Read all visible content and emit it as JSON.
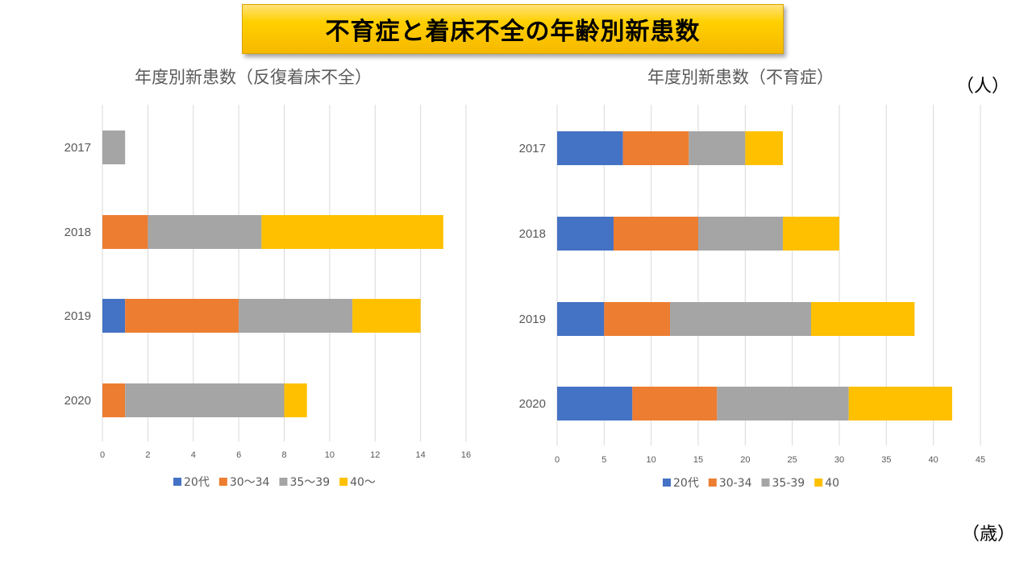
{
  "header": {
    "title": "不育症と着床不全の年齢別新患数"
  },
  "units": {
    "count": "（人）",
    "age": "（歳）"
  },
  "colors": {
    "s1": "#4472c4",
    "s2": "#ed7d31",
    "s3": "#a5a5a5",
    "s4": "#ffc000",
    "grid": "#d9d9d9"
  },
  "chart_data": [
    {
      "type": "bar",
      "orientation": "horizontal",
      "stacked": true,
      "title": "年度別新患数（反復着床不全）",
      "categories": [
        "2017",
        "2018",
        "2019",
        "2020"
      ],
      "series": [
        {
          "name": "20代",
          "values": [
            0,
            0,
            1,
            0
          ]
        },
        {
          "name": "30〜34",
          "values": [
            0,
            2,
            5,
            1
          ]
        },
        {
          "name": "35〜39",
          "values": [
            1,
            5,
            5,
            7
          ]
        },
        {
          "name": "40〜",
          "values": [
            0,
            8,
            3,
            1
          ]
        }
      ],
      "xlim": [
        0,
        16
      ],
      "xticks": [
        "0",
        "2",
        "4",
        "6",
        "8",
        "10",
        "12",
        "14",
        "16"
      ],
      "grid": true,
      "legend": "bottom"
    },
    {
      "type": "bar",
      "orientation": "horizontal",
      "stacked": true,
      "title": "年度別新患数（不育症）",
      "categories": [
        "2017",
        "2018",
        "2019",
        "2020"
      ],
      "series": [
        {
          "name": "20代",
          "values": [
            7,
            6,
            5,
            8
          ]
        },
        {
          "name": "30-34",
          "values": [
            7,
            9,
            7,
            9
          ]
        },
        {
          "name": "35-39",
          "values": [
            6,
            9,
            15,
            14
          ]
        },
        {
          "name": "40",
          "values": [
            4,
            6,
            11,
            11
          ]
        }
      ],
      "xlim": [
        0,
        45
      ],
      "xticks": [
        "0",
        "5",
        "10",
        "15",
        "20",
        "25",
        "30",
        "35",
        "40",
        "45"
      ],
      "grid": true,
      "legend": "bottom"
    }
  ]
}
